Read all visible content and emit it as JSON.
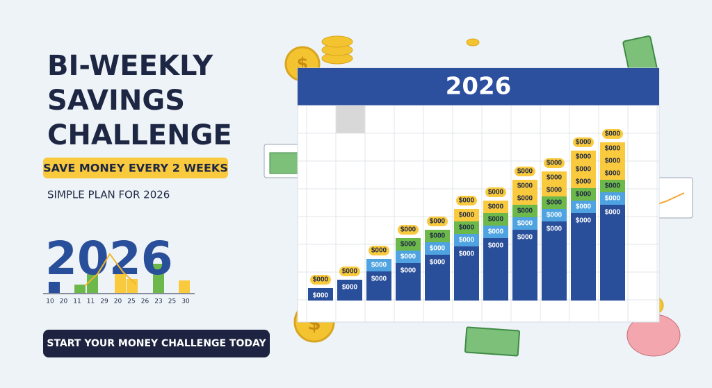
{
  "title_lines": [
    "BI-WEEKLY",
    "SAVINGS",
    "CHALLENGE"
  ],
  "badge": "SAVE MONEY EVERY 2 WEEKS",
  "subtitle": "SIMPLE PLAN FOR 2026",
  "year_graphic": "2026",
  "mini_axis_labels": [
    "10",
    "20",
    "11",
    "11",
    "29",
    "20",
    "25",
    "26",
    "23",
    "25",
    "30"
  ],
  "cta": "START YOUR MONEY CHALLENGE TODAY",
  "calendar": {
    "year": "2026",
    "columns": [
      [
        "$000",
        "$000"
      ],
      [
        "$000",
        "$000"
      ],
      [
        "$000",
        "$000",
        "$000"
      ],
      [
        "$000",
        "$000",
        "$000",
        "$000"
      ],
      [
        "$000",
        "$000",
        "$000",
        "$000"
      ],
      [
        "$000",
        "$000",
        "$000",
        "$000",
        "$000"
      ],
      [
        "$000",
        "$000",
        "$000",
        "$000",
        "$000"
      ],
      [
        "$000",
        "$000",
        "$000",
        "$000",
        "$000",
        "$000"
      ],
      [
        "$000",
        "$000",
        "$000",
        "$000",
        "$000",
        "$000"
      ],
      [
        "$000",
        "$000",
        "$000",
        "$000",
        "$000",
        "$000",
        "$000"
      ],
      [
        "$000",
        "$000",
        "$000",
        "$000",
        "$000",
        "$000",
        "$000"
      ]
    ]
  }
}
